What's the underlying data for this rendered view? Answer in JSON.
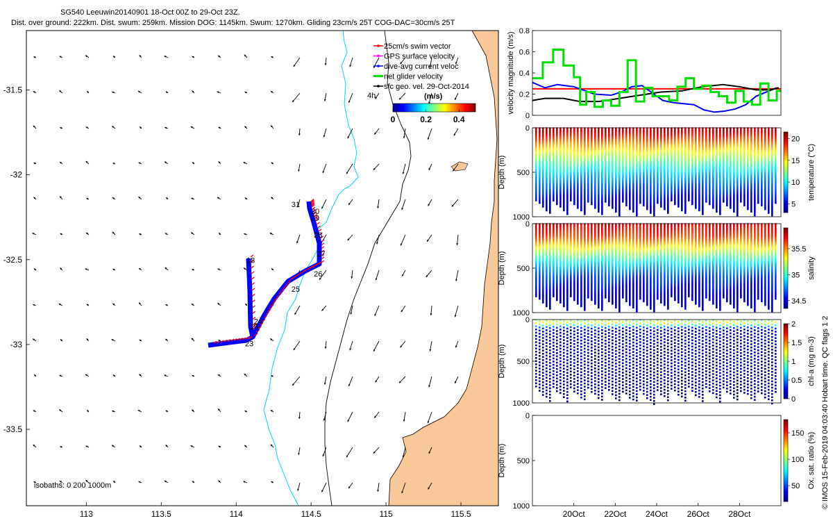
{
  "title": {
    "line1": "SG540 Leeuwin20140901 18-Oct 00Z to 29-Oct 23Z.",
    "line2": "Dist. over ground: 222km. Dist. swum: 259km. Mission DOG: 1145km. Swum: 1270km. Gliding 23cm/s 25T COG-DAC=30cm/s 25T"
  },
  "colors": {
    "land": "#f8c898",
    "isobath_200": "#00d8f0",
    "isobath_1000": "#000000",
    "swim": "#ff0000",
    "gps": "#ff00ff",
    "dac": "#0000ff",
    "net": "#00e000",
    "geo": "#000000"
  },
  "map": {
    "xlim": [
      112.6,
      115.75
    ],
    "ylim": [
      -33.95,
      -31.15
    ],
    "xticks": [
      "113",
      "113.5",
      "114",
      "114.5",
      "115",
      "115.5"
    ],
    "yticks": [
      "-31.5",
      "-32",
      "-32.5",
      "-33",
      "-33.5"
    ],
    "isobath_label": "isobaths: 0   200  1000m",
    "time_label": "4h",
    "legend": [
      {
        "label": "25cm/s swim vector",
        "color": "#ff0000"
      },
      {
        "label": "GPS surface velocity",
        "color": "#ff00ff"
      },
      {
        "label": "dive-avg current veloc",
        "color": "#0000ff"
      },
      {
        "label": "net glider velocity",
        "color": "#00e000"
      },
      {
        "label": "sfc geo. vel. 29-Oct-2014",
        "color": "#000000"
      }
    ],
    "colorbar": {
      "label": "(m/s)",
      "ticks": [
        "0",
        "0.2",
        "0.4"
      ],
      "range": [
        0,
        0.5
      ]
    },
    "track_labels": [
      {
        "text": "18",
        "lon": 114.05,
        "lat": -32.52
      },
      {
        "text": "19",
        "lon": 114.07,
        "lat": -32.91
      },
      {
        "text": "23",
        "lon": 114.04,
        "lat": -33.01
      },
      {
        "text": "24",
        "lon": 114.1,
        "lat": -32.88
      },
      {
        "text": "25",
        "lon": 114.35,
        "lat": -32.69
      },
      {
        "text": "26",
        "lon": 114.5,
        "lat": -32.6
      },
      {
        "text": "27",
        "lon": 114.52,
        "lat": -32.48
      },
      {
        "text": "28",
        "lon": 114.5,
        "lat": -32.37
      },
      {
        "text": "29",
        "lon": 114.48,
        "lat": -32.27
      },
      {
        "text": "30",
        "lon": 114.48,
        "lat": -32.23
      },
      {
        "text": "31",
        "lon": 114.35,
        "lat": -32.19
      }
    ]
  },
  "chart_data": [
    {
      "type": "line",
      "name": "velocity-magnitude",
      "ylabel": "velocity magnitude (m/s)",
      "ylim": [
        0,
        0.8
      ],
      "yticks": [
        "0",
        "0.2",
        "0.4",
        "0.6",
        "0.8"
      ],
      "xlim": [
        18,
        30
      ],
      "series": [
        {
          "name": "swim",
          "color": "#ff0000",
          "x": [
            18,
            30
          ],
          "y": [
            0.25,
            0.25
          ]
        },
        {
          "name": "dac",
          "color": "#0000ff",
          "x": [
            18,
            18.6,
            19.2,
            20,
            21,
            21.8,
            22.3,
            22.8,
            23.3,
            23.8,
            24.3,
            24.8,
            25.3,
            25.8,
            26.3,
            26.8,
            27.3,
            27.8,
            28.3,
            28.8,
            29.3,
            29.8
          ],
          "y": [
            0.31,
            0.26,
            0.29,
            0.27,
            0.2,
            0.19,
            0.22,
            0.27,
            0.28,
            0.21,
            0.14,
            0.12,
            0.11,
            0.1,
            0.05,
            0.03,
            0.04,
            0.06,
            0.1,
            0.18,
            0.22,
            0.26
          ]
        },
        {
          "name": "geo",
          "color": "#000000",
          "x": [
            18,
            18.6,
            19.5,
            20.3,
            21.2,
            22.2,
            23.2,
            24.2,
            25.2,
            26.2,
            27.2,
            28,
            28.8,
            29.5,
            29.9
          ],
          "y": [
            0.14,
            0.16,
            0.16,
            0.13,
            0.13,
            0.16,
            0.19,
            0.22,
            0.23,
            0.27,
            0.29,
            0.27,
            0.24,
            0.24,
            0.26
          ]
        },
        {
          "name": "net",
          "color": "#00e000",
          "x": [
            18,
            18.5,
            19,
            19.5,
            20,
            20.3,
            20.6,
            21,
            21.4,
            21.8,
            22.2,
            22.6,
            23,
            23.4,
            23.8,
            24.2,
            24.6,
            25,
            25.4,
            25.8,
            26.2,
            26.6,
            27,
            27.4,
            27.8,
            28.2,
            28.6,
            29,
            29.4,
            29.8
          ],
          "y": [
            0.35,
            0.5,
            0.62,
            0.47,
            0.36,
            0.1,
            0.22,
            0.08,
            0.14,
            0.09,
            0.22,
            0.52,
            0.13,
            0.26,
            0.18,
            0.18,
            0.14,
            0.27,
            0.35,
            0.25,
            0.28,
            0.22,
            0.18,
            0.12,
            0.23,
            0.13,
            0.1,
            0.3,
            0.14,
            0.23
          ]
        }
      ]
    },
    {
      "type": "heatmap",
      "name": "temperature-section",
      "ylabel": "Depth (m)",
      "ylim": [
        0,
        1000
      ],
      "yticks": [
        "0",
        "500",
        "1000"
      ],
      "colorbar_label": "temperature (°C)",
      "crange": [
        3,
        21.5
      ],
      "cticks": [
        "20",
        "15",
        "10",
        "5"
      ],
      "profile": [
        {
          "depth": 0,
          "value": 20.5
        },
        {
          "depth": 100,
          "value": 18.5
        },
        {
          "depth": 200,
          "value": 16.0
        },
        {
          "depth": 300,
          "value": 13.8
        },
        {
          "depth": 400,
          "value": 11.5
        },
        {
          "depth": 500,
          "value": 9.5
        },
        {
          "depth": 650,
          "value": 7.2
        },
        {
          "depth": 800,
          "value": 5.4
        },
        {
          "depth": 1000,
          "value": 4.0
        }
      ]
    },
    {
      "type": "heatmap",
      "name": "salinity-section",
      "ylabel": "Depth (m)",
      "ylim": [
        0,
        1000
      ],
      "yticks": [
        "0",
        "500",
        "1000"
      ],
      "colorbar_label": "salinity",
      "crange": [
        34.35,
        35.9
      ],
      "cticks": [
        "35.5",
        "35",
        "34.5"
      ],
      "profile": [
        {
          "depth": 0,
          "value": 35.75
        },
        {
          "depth": 150,
          "value": 35.6
        },
        {
          "depth": 300,
          "value": 35.25
        },
        {
          "depth": 450,
          "value": 34.9
        },
        {
          "depth": 600,
          "value": 34.65
        },
        {
          "depth": 800,
          "value": 34.5
        },
        {
          "depth": 1000,
          "value": 34.45
        }
      ]
    },
    {
      "type": "heatmap",
      "name": "chl-section",
      "ylabel": "Depth (m)",
      "ylim": [
        0,
        1000
      ],
      "yticks": [
        "0",
        "500",
        "1000"
      ],
      "colorbar_label": "chl-a (mg m-3)",
      "crange": [
        0,
        2
      ],
      "cticks": [
        "2",
        "1.5",
        "1",
        "0.5",
        "0"
      ],
      "profile": [
        {
          "depth": 0,
          "value": 0.9
        },
        {
          "depth": 40,
          "value": 1.3
        },
        {
          "depth": 80,
          "value": 0.6
        },
        {
          "depth": 120,
          "value": 0.1
        },
        {
          "depth": 1000,
          "value": 0.0
        }
      ]
    },
    {
      "type": "heatmap",
      "name": "oxygen-section",
      "ylabel": "Depth (m)",
      "ylim": [
        0,
        1000
      ],
      "yticks": [
        "0",
        "500",
        "1000"
      ],
      "colorbar_label": "Ox. sat. ratio (%)",
      "crange": [
        20,
        175
      ],
      "cticks": [
        "150",
        "100",
        "50"
      ],
      "profile": []
    }
  ],
  "time_axis": {
    "ticks": [
      "20Oct",
      "22Oct",
      "24Oct",
      "26Oct",
      "28Oct"
    ],
    "xlim": [
      18,
      30
    ]
  },
  "footer": "© IMOS 15-Feb-2019 04:03:40 Hobart time. QC flags 1  2"
}
